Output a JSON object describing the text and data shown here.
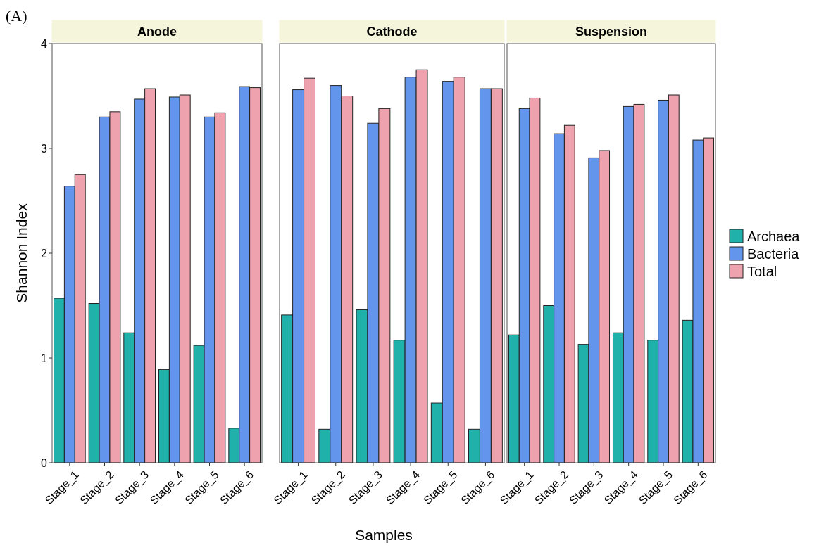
{
  "chart_data": [
    {
      "type": "bar",
      "title": "Anode",
      "ylabel": "Shannon Index",
      "annotations": [
        "(A)"
      ],
      "categories": [
        "Stage_1",
        "Stage_2",
        "Stage_3",
        "Stage_4",
        "Stage_5",
        "Stage_6"
      ],
      "ylim": [
        0,
        4
      ],
      "yticks": [
        0,
        1,
        2,
        3,
        4
      ],
      "grid": false,
      "series": [
        {
          "color": "#20b2aa",
          "values": [
            1.57,
            1.52,
            1.24,
            0.89,
            1.12,
            0.33
          ]
        },
        {
          "color": "#6495ed",
          "values": [
            2.64,
            3.3,
            3.47,
            3.49,
            3.3,
            3.59
          ]
        },
        {
          "color": "#eea2ad",
          "values": [
            2.75,
            3.35,
            3.57,
            3.51,
            3.34,
            3.58
          ]
        }
      ]
    },
    {
      "type": "bar",
      "title": "Cathode",
      "xlabel": "Samples",
      "categories": [
        "Stage_1",
        "Stage_2",
        "Stage_3",
        "Stage_4",
        "Stage_5",
        "Stage_6"
      ],
      "ylim": [
        0,
        4
      ],
      "grid": false,
      "tick_labels": "x",
      "series": [
        {
          "color": "#20b2aa",
          "values": [
            1.41,
            0.32,
            1.46,
            1.17,
            0.57,
            0.32
          ]
        },
        {
          "color": "#6495ed",
          "values": [
            3.56,
            3.6,
            3.24,
            3.68,
            3.64,
            3.57
          ]
        },
        {
          "color": "#eea2ad",
          "values": [
            3.67,
            3.5,
            3.38,
            3.75,
            3.68,
            3.57
          ]
        }
      ]
    },
    {
      "type": "bar",
      "title": "Suspension",
      "legend": "right",
      "categories": [
        "Stage_1",
        "Stage_2",
        "Stage_3",
        "Stage_4",
        "Stage_5",
        "Stage_6"
      ],
      "ylim": [
        0,
        4
      ],
      "grid": false,
      "tick_labels": "x",
      "series": [
        {
          "name": "Archaea",
          "color": "#20b2aa",
          "values": [
            1.22,
            1.5,
            1.13,
            1.24,
            1.17,
            1.36
          ]
        },
        {
          "name": "Bacteria",
          "color": "#6495ed",
          "values": [
            3.38,
            3.14,
            2.91,
            3.4,
            3.46,
            3.08
          ]
        },
        {
          "name": "Total",
          "color": "#eea2ad",
          "values": [
            3.48,
            3.22,
            2.98,
            3.42,
            3.51,
            3.1
          ]
        }
      ]
    }
  ]
}
